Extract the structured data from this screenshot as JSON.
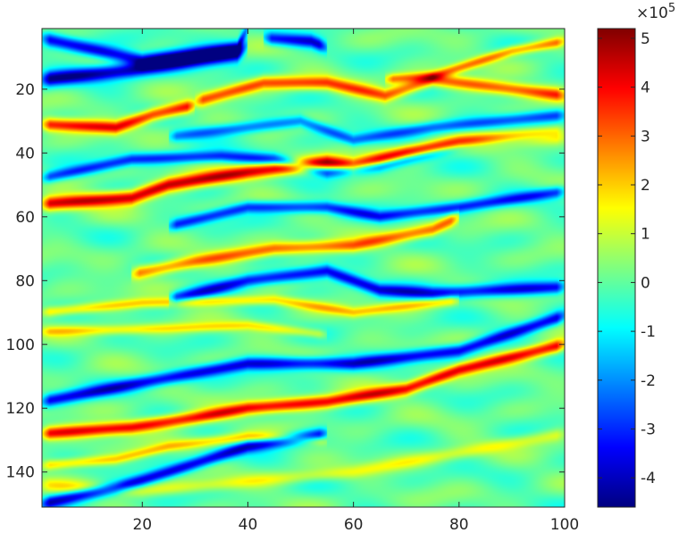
{
  "chart_data": {
    "type": "heatmap",
    "title": "",
    "xlabel": "",
    "ylabel": "",
    "colormap": "jet",
    "x_range": [
      1,
      100
    ],
    "y_range": [
      1,
      151
    ],
    "y_reversed": true,
    "x_ticks": [
      20,
      40,
      60,
      80,
      100
    ],
    "y_ticks": [
      20,
      40,
      60,
      80,
      100,
      120,
      140
    ],
    "colorbar": {
      "range": [
        -4.6,
        5.2
      ],
      "ticks": [
        -4,
        -3,
        -2,
        -1,
        0,
        1,
        2,
        3,
        4,
        5
      ],
      "tick_labels": [
        "-4",
        "-3",
        "-2",
        "-1",
        "0",
        "1",
        "2",
        "3",
        "4",
        "5"
      ],
      "exponent_label": "×10",
      "exponent_power": "5"
    },
    "grid": false,
    "events": [
      {
        "y_at_x": [
          [
            1,
            4
          ],
          [
            20,
            11
          ],
          [
            38,
            7
          ],
          [
            40,
            1
          ]
        ],
        "value": -3.8,
        "thick": 2.2
      },
      {
        "y_at_x": [
          [
            1,
            17
          ],
          [
            18,
            14
          ],
          [
            38,
            9
          ],
          [
            40,
            6
          ]
        ],
        "value": -4.3,
        "thick": 2.4
      },
      {
        "y_at_x": [
          [
            43,
            4
          ],
          [
            52,
            5
          ],
          [
            55,
            7
          ]
        ],
        "value": -3.6,
        "thick": 2.0
      },
      {
        "y_at_x": [
          [
            66,
            17
          ],
          [
            75,
            16
          ],
          [
            90,
            8
          ],
          [
            100,
            5
          ]
        ],
        "value": 2.8,
        "thick": 1.6
      },
      {
        "y_at_x": [
          [
            30,
            24
          ],
          [
            43,
            18
          ],
          [
            55,
            18
          ],
          [
            66,
            22
          ],
          [
            75,
            17
          ],
          [
            100,
            22
          ]
        ],
        "value": 3.2,
        "thick": 2.0
      },
      {
        "y_at_x": [
          [
            1,
            31
          ],
          [
            15,
            32
          ],
          [
            22,
            28
          ],
          [
            30,
            25
          ]
        ],
        "value": 4.0,
        "thick": 2.0
      },
      {
        "y_at_x": [
          [
            25,
            35
          ],
          [
            40,
            32
          ],
          [
            50,
            30
          ],
          [
            60,
            36
          ],
          [
            75,
            32
          ],
          [
            100,
            28
          ]
        ],
        "value": -2.4,
        "thick": 1.8
      },
      {
        "y_at_x": [
          [
            1,
            48
          ],
          [
            18,
            42
          ],
          [
            35,
            41
          ],
          [
            45,
            42
          ],
          [
            55,
            46
          ],
          [
            65,
            44
          ],
          [
            80,
            38
          ],
          [
            100,
            34
          ]
        ],
        "value": -3.0,
        "thick": 1.8
      },
      {
        "y_at_x": [
          [
            1,
            56
          ],
          [
            18,
            54
          ],
          [
            25,
            50
          ],
          [
            40,
            46
          ],
          [
            55,
            43
          ],
          [
            60,
            44
          ],
          [
            70,
            40
          ],
          [
            80,
            37
          ],
          [
            100,
            34
          ]
        ],
        "value": 4.6,
        "thick": 2.2
      },
      {
        "y_at_x": [
          [
            25,
            63
          ],
          [
            40,
            57
          ],
          [
            55,
            57
          ],
          [
            65,
            60
          ],
          [
            80,
            57
          ],
          [
            100,
            52
          ]
        ],
        "value": -3.0,
        "thick": 1.8
      },
      {
        "y_at_x": [
          [
            18,
            78
          ],
          [
            30,
            74
          ],
          [
            45,
            70
          ],
          [
            60,
            69
          ],
          [
            75,
            64
          ],
          [
            80,
            60
          ]
        ],
        "value": 3.0,
        "thick": 2.0
      },
      {
        "y_at_x": [
          [
            25,
            86
          ],
          [
            40,
            80
          ],
          [
            55,
            77
          ],
          [
            65,
            83
          ],
          [
            75,
            84
          ],
          [
            100,
            82
          ]
        ],
        "value": -3.6,
        "thick": 2.0
      },
      {
        "y_at_x": [
          [
            1,
            90
          ],
          [
            20,
            87
          ],
          [
            45,
            86
          ],
          [
            60,
            90
          ],
          [
            80,
            86
          ]
        ],
        "value": 2.0,
        "thick": 1.6
      },
      {
        "y_at_x": [
          [
            1,
            96
          ],
          [
            25,
            95
          ],
          [
            40,
            94
          ],
          [
            55,
            97
          ]
        ],
        "value": 1.6,
        "thick": 1.5
      },
      {
        "y_at_x": [
          [
            1,
            118
          ],
          [
            20,
            112
          ],
          [
            40,
            106
          ],
          [
            60,
            106
          ],
          [
            80,
            102
          ],
          [
            100,
            91
          ]
        ],
        "value": -3.6,
        "thick": 2.0
      },
      {
        "y_at_x": [
          [
            1,
            128
          ],
          [
            18,
            126
          ],
          [
            30,
            123
          ],
          [
            40,
            120
          ],
          [
            55,
            118
          ],
          [
            70,
            114
          ],
          [
            80,
            108
          ],
          [
            100,
            100
          ]
        ],
        "value": 4.2,
        "thick": 2.0
      },
      {
        "y_at_x": [
          [
            1,
            138
          ],
          [
            15,
            136
          ],
          [
            25,
            132
          ],
          [
            40,
            129
          ],
          [
            55,
            130
          ]
        ],
        "value": 2.0,
        "thick": 1.6
      },
      {
        "y_at_x": [
          [
            1,
            150
          ],
          [
            15,
            145
          ],
          [
            25,
            140
          ],
          [
            40,
            132
          ],
          [
            55,
            128
          ]
        ],
        "value": -3.8,
        "thick": 2.0
      },
      {
        "y_at_x": [
          [
            1,
            144
          ],
          [
            20,
            146
          ],
          [
            40,
            143
          ],
          [
            60,
            140
          ],
          [
            100,
            128
          ]
        ],
        "value": 1.2,
        "thick": 2.0
      }
    ]
  }
}
